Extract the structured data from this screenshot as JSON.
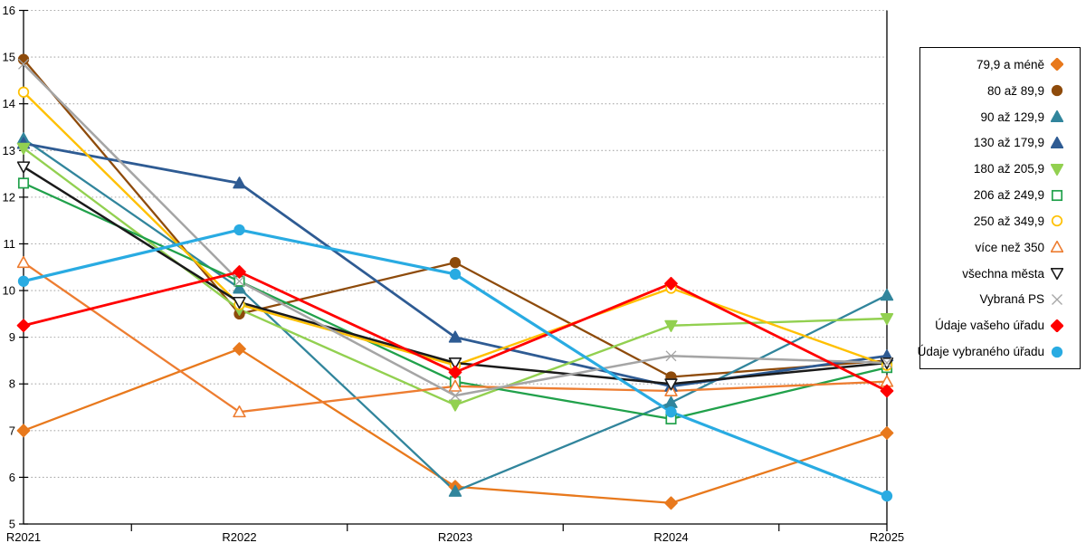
{
  "chart_data": {
    "type": "line",
    "title": "",
    "xlabel": "",
    "ylabel": "",
    "ylim": [
      5,
      16
    ],
    "grid": "horizontal-dotted",
    "grid_color": "#ABABAB",
    "axis_color": "#000000",
    "legend_position": "right",
    "categories": [
      "R2021",
      "R2022",
      "R2023",
      "R2024",
      "R2025"
    ],
    "yticks": [
      16,
      15,
      14,
      13,
      12,
      11,
      10,
      9,
      8,
      7,
      6,
      5
    ],
    "series": [
      {
        "name": "79,9 a méně",
        "marker": "diamond",
        "filled": true,
        "color": "#E8791D",
        "width": 2.3,
        "values": [
          7.0,
          8.75,
          5.8,
          5.45,
          6.95
        ]
      },
      {
        "name": "80 až 89,9",
        "marker": "circle",
        "filled": true,
        "color": "#8E4B0B",
        "width": 2.3,
        "values": [
          14.95,
          9.5,
          10.6,
          8.15,
          8.5
        ]
      },
      {
        "name": "90 až 129,9",
        "marker": "triangle-up",
        "filled": true,
        "color": "#31859C",
        "width": 2.3,
        "values": [
          13.25,
          10.05,
          5.7,
          7.6,
          9.9
        ]
      },
      {
        "name": "130 až 179,9",
        "marker": "triangle-up",
        "filled": true,
        "color": "#2E5B93",
        "width": 2.8,
        "values": [
          13.15,
          12.3,
          9.0,
          7.95,
          8.6
        ]
      },
      {
        "name": "180 až 205,9",
        "marker": "triangle-down",
        "filled": true,
        "color": "#92D050",
        "width": 2.4,
        "values": [
          13.05,
          9.6,
          7.55,
          9.25,
          9.4
        ]
      },
      {
        "name": "206 až 249,9",
        "marker": "square",
        "filled": false,
        "color": "#21A14B",
        "width": 2.3,
        "values": [
          12.3,
          10.2,
          8.05,
          7.25,
          8.35
        ]
      },
      {
        "name": "250 až 349,9",
        "marker": "circle",
        "filled": false,
        "color": "#FFC000",
        "width": 2.4,
        "values": [
          14.25,
          9.7,
          8.4,
          10.05,
          8.4
        ]
      },
      {
        "name": "více než 350",
        "marker": "triangle-up",
        "filled": false,
        "color": "#ED7D31",
        "width": 2.3,
        "values": [
          10.6,
          7.4,
          7.95,
          7.85,
          8.05
        ]
      },
      {
        "name": "všechna města",
        "marker": "triangle-down",
        "filled": false,
        "color": "#1A1A1A",
        "width": 2.5,
        "values": [
          12.65,
          9.75,
          8.45,
          8.0,
          8.45
        ]
      },
      {
        "name": "Vybraná PS",
        "marker": "x",
        "filled": false,
        "color": "#A5A5A5",
        "width": 2.5,
        "values": [
          14.85,
          10.2,
          7.75,
          8.6,
          8.45
        ]
      },
      {
        "name": "Údaje vašeho úřadu",
        "marker": "diamond",
        "filled": true,
        "color": "#FF0000",
        "width": 2.8,
        "values": [
          9.25,
          10.4,
          8.25,
          10.15,
          7.85
        ]
      },
      {
        "name": "Údaje vybraného úřadu",
        "marker": "circle",
        "filled": true,
        "color": "#29ABE2",
        "width": 3.2,
        "values": [
          10.2,
          11.3,
          10.35,
          7.4,
          5.6
        ]
      }
    ]
  }
}
